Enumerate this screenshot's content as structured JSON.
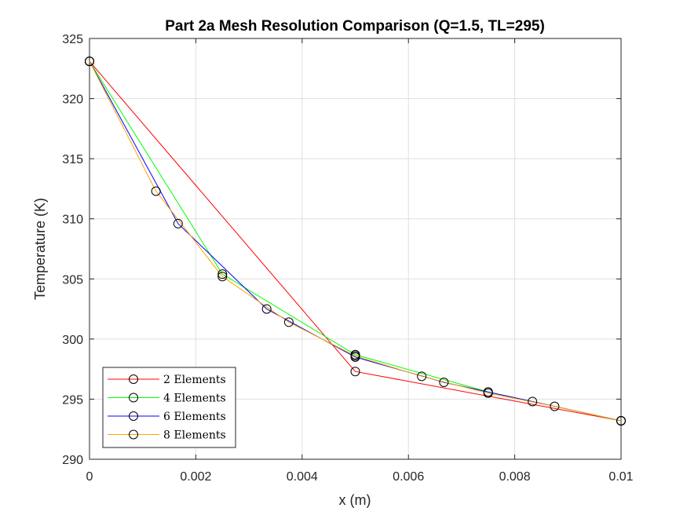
{
  "chart_data": {
    "type": "line",
    "title": "Part 2a Mesh Resolution Comparison (Q=1.5, TL=295)",
    "xlabel": "x (m)",
    "ylabel": "Temperature (K)",
    "xlim": [
      0,
      0.01
    ],
    "ylim": [
      290,
      325
    ],
    "xticks": [
      0,
      0.002,
      0.004,
      0.006,
      0.008,
      0.01
    ],
    "xtick_labels": [
      "0",
      "0.002",
      "0.004",
      "0.006",
      "0.008",
      "0.01"
    ],
    "yticks": [
      290,
      295,
      300,
      305,
      310,
      315,
      320,
      325
    ],
    "ytick_labels": [
      "290",
      "295",
      "300",
      "305",
      "310",
      "315",
      "320",
      "325"
    ],
    "grid": true,
    "legend_position": "bottom-left",
    "marker": "circle",
    "series": [
      {
        "name": "2 Elements",
        "color": "#ff0000",
        "x": [
          0,
          0.005,
          0.01
        ],
        "y": [
          323.1,
          297.3,
          293.2
        ]
      },
      {
        "name": "4 Elements",
        "color": "#00ff00",
        "x": [
          0,
          0.0025,
          0.005,
          0.0075,
          0.01
        ],
        "y": [
          323.1,
          305.4,
          298.7,
          295.6,
          293.2
        ]
      },
      {
        "name": "6 Elements",
        "color": "#0000ff",
        "x": [
          0,
          0.0016667,
          0.0033333,
          0.005,
          0.0066667,
          0.0083333,
          0.01
        ],
        "y": [
          323.1,
          309.6,
          302.5,
          298.5,
          296.4,
          294.8,
          293.2
        ]
      },
      {
        "name": "8 Elements",
        "color": "#ffa500",
        "x": [
          0,
          0.00125,
          0.0025,
          0.00375,
          0.005,
          0.00625,
          0.0075,
          0.00875,
          0.01
        ],
        "y": [
          323.1,
          312.3,
          305.2,
          301.4,
          298.6,
          296.9,
          295.5,
          294.4,
          293.2
        ]
      }
    ]
  }
}
